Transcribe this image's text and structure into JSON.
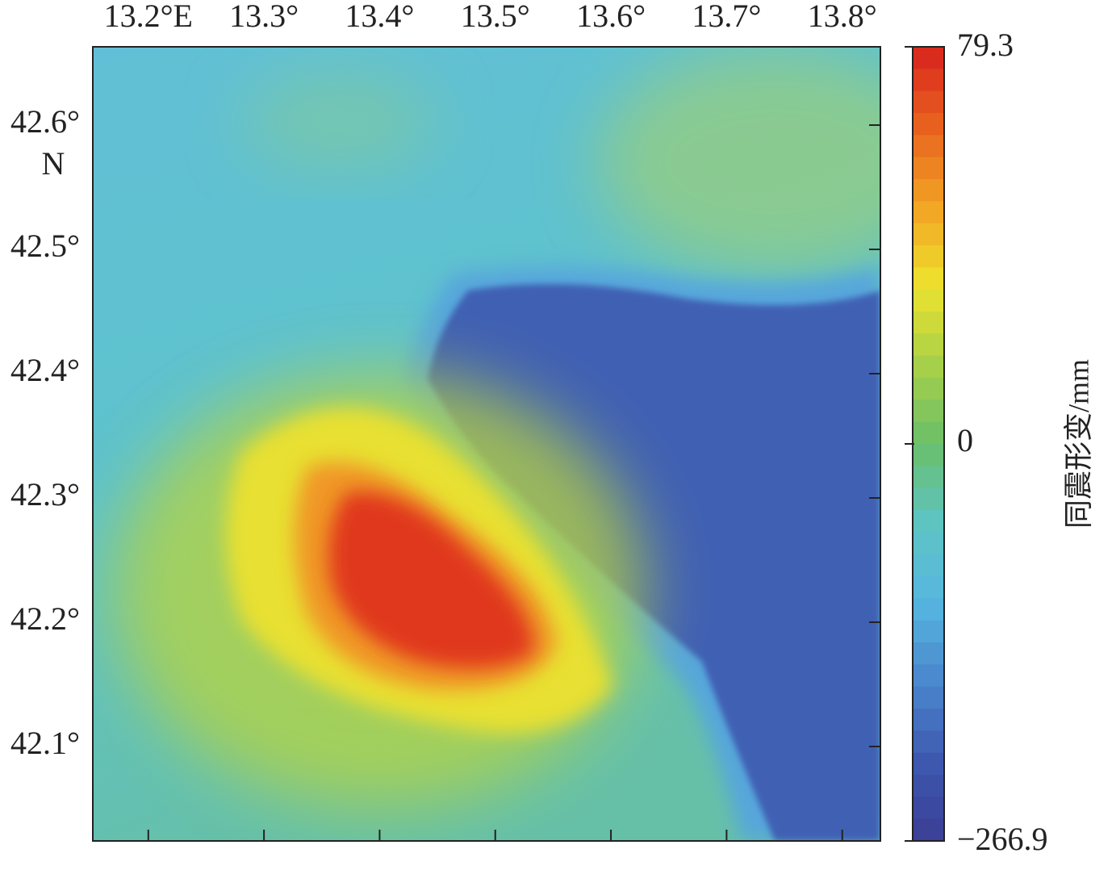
{
  "map": {
    "lon_range": [
      13.152,
      13.833
    ],
    "lat_range": [
      42.024,
      42.663
    ],
    "x_ticks": [
      {
        "value": 13.2,
        "label": "13.2°E"
      },
      {
        "value": 13.3,
        "label": "13.3°"
      },
      {
        "value": 13.4,
        "label": "13.4°"
      },
      {
        "value": 13.5,
        "label": "13.5°"
      },
      {
        "value": 13.6,
        "label": "13.6°"
      },
      {
        "value": 13.7,
        "label": "13.7°"
      },
      {
        "value": 13.8,
        "label": "13.8°"
      }
    ],
    "y_ticks": [
      {
        "value": 42.6,
        "label": "42.6°"
      },
      {
        "value": 42.5,
        "label": "42.5°"
      },
      {
        "value": 42.4,
        "label": "42.4°"
      },
      {
        "value": 42.3,
        "label": "42.3°"
      },
      {
        "value": 42.2,
        "label": "42.2°"
      },
      {
        "value": 42.1,
        "label": "42.1°"
      }
    ],
    "y_unit": "N",
    "colorbar": {
      "label": "同震形变/mm",
      "scale": "diverging",
      "range": [
        -266.9,
        79.3
      ],
      "ticks": [
        {
          "value": 79.3,
          "label": "79.3"
        },
        {
          "value": 0,
          "label": "0"
        },
        {
          "value": -266.9,
          "label": "−266.9"
        }
      ],
      "colormap": [
        "#3b3f94",
        "#3e58b0",
        "#4a86cc",
        "#56b6e0",
        "#5ec4c2",
        "#6abf6a",
        "#a8d048",
        "#eee22e",
        "#f2a224",
        "#e8621e",
        "#d8231e"
      ]
    }
  }
}
